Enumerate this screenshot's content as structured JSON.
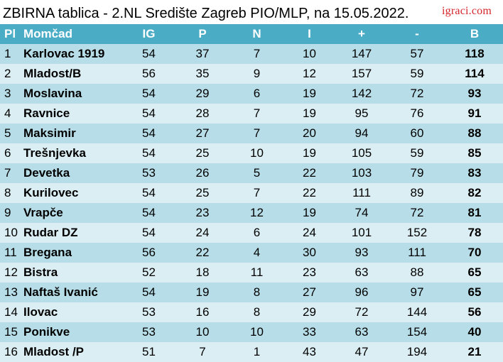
{
  "title": "ZBIRNA tablica - 2.NL Središte Zagreb PIO/MLP, na 15.05.2022.",
  "logo_text": "igraci.com",
  "colors": {
    "header": "#4bacc6",
    "row_odd": "#b7dee8",
    "row_even": "#dbeef3",
    "logo": "#d6262b"
  },
  "headers": [
    "Pl",
    "Momčad",
    "IG",
    "P",
    "N",
    "I",
    "+",
    "-",
    "B"
  ],
  "rows": [
    [
      "1",
      "Karlovac 1919",
      "54",
      "37",
      "7",
      "10",
      "147",
      "57",
      "118"
    ],
    [
      "2",
      "Mladost/B",
      "56",
      "35",
      "9",
      "12",
      "157",
      "59",
      "114"
    ],
    [
      "3",
      "Moslavina",
      "54",
      "29",
      "6",
      "19",
      "142",
      "72",
      "93"
    ],
    [
      "4",
      "Ravnice",
      "54",
      "28",
      "7",
      "19",
      "95",
      "76",
      "91"
    ],
    [
      "5",
      "Maksimir",
      "54",
      "27",
      "7",
      "20",
      "94",
      "60",
      "88"
    ],
    [
      "6",
      "Trešnjevka",
      "54",
      "25",
      "10",
      "19",
      "105",
      "59",
      "85"
    ],
    [
      "7",
      "Devetka",
      "53",
      "26",
      "5",
      "22",
      "103",
      "79",
      "83"
    ],
    [
      "8",
      "Kurilovec",
      "54",
      "25",
      "7",
      "22",
      "111",
      "89",
      "82"
    ],
    [
      "9",
      "Vrapče",
      "54",
      "23",
      "12",
      "19",
      "74",
      "72",
      "81"
    ],
    [
      "10",
      "Rudar DZ",
      "54",
      "24",
      "6",
      "24",
      "101",
      "152",
      "78"
    ],
    [
      "11",
      "Bregana",
      "56",
      "22",
      "4",
      "30",
      "93",
      "111",
      "70"
    ],
    [
      "12",
      "Bistra",
      "52",
      "18",
      "11",
      "23",
      "63",
      "88",
      "65"
    ],
    [
      "13",
      "Naftaš Ivanić",
      "54",
      "19",
      "8",
      "27",
      "96",
      "97",
      "65"
    ],
    [
      "14",
      "Ilovac",
      "53",
      "16",
      "8",
      "29",
      "72",
      "144",
      "56"
    ],
    [
      "15",
      "Ponikve",
      "53",
      "10",
      "10",
      "33",
      "63",
      "154",
      "40"
    ],
    [
      "16",
      "Mladost /P",
      "51",
      "7",
      "1",
      "43",
      "47",
      "194",
      "21"
    ]
  ]
}
